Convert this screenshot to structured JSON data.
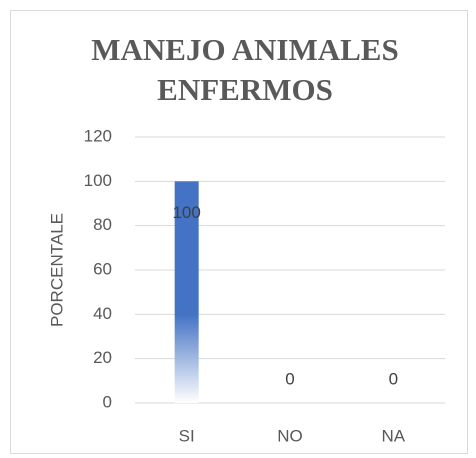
{
  "chart_data": {
    "type": "bar",
    "title": "MANEJO ANIMALES ENFERMOS",
    "y_label": "PORCENTALE",
    "categories": [
      "SI",
      "NO",
      "NA"
    ],
    "values": [
      100,
      0,
      0
    ],
    "color": "#4472c4",
    "ylim": [
      0,
      120
    ],
    "yticks": [
      0,
      20,
      40,
      60,
      80,
      100,
      120
    ],
    "grid": true
  }
}
